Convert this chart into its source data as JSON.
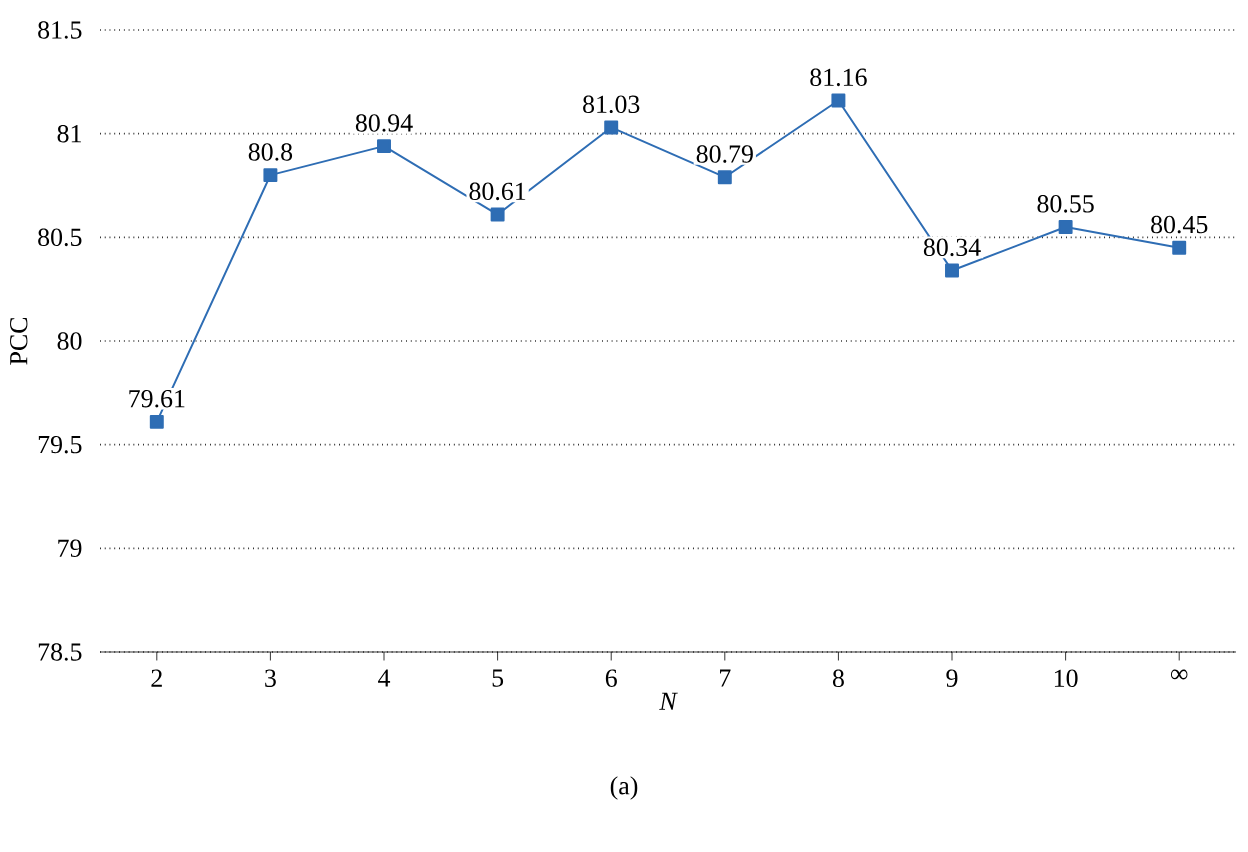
{
  "chart_data": {
    "type": "line",
    "xlabel": "N",
    "ylabel": "PCC",
    "categories": [
      "2",
      "3",
      "4",
      "5",
      "6",
      "7",
      "8",
      "9",
      "10",
      "∞"
    ],
    "values": [
      79.61,
      80.8,
      80.94,
      80.61,
      81.03,
      80.79,
      81.16,
      80.34,
      80.55,
      80.45
    ],
    "color": "#2e6db4",
    "marker": "square",
    "line_style": "solid",
    "data_labels": true,
    "ylim": [
      78.5,
      81.5
    ],
    "yticks": [
      78.5,
      79,
      79.5,
      80,
      80.5,
      81,
      81.5
    ],
    "grid": "y",
    "annotations": [
      "(a)"
    ]
  }
}
